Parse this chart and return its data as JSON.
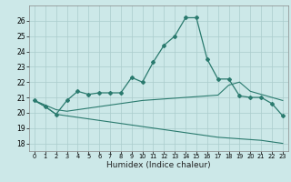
{
  "x": [
    0,
    1,
    2,
    3,
    4,
    5,
    6,
    7,
    8,
    9,
    10,
    11,
    12,
    13,
    14,
    15,
    16,
    17,
    18,
    19,
    20,
    21,
    22,
    23
  ],
  "humidex_main": [
    20.8,
    20.4,
    19.9,
    20.8,
    21.4,
    21.2,
    21.3,
    21.3,
    21.3,
    22.3,
    22.0,
    23.3,
    24.4,
    25.0,
    26.2,
    26.2,
    23.5,
    22.2,
    22.2,
    21.1,
    21.0,
    21.0,
    20.6,
    19.8
  ],
  "line_upper": [
    20.8,
    20.5,
    20.2,
    20.1,
    20.2,
    20.3,
    20.4,
    20.5,
    20.6,
    20.7,
    20.8,
    20.85,
    20.9,
    20.95,
    21.0,
    21.05,
    21.1,
    21.15,
    21.8,
    22.0,
    21.4,
    21.2,
    21.0,
    20.8
  ],
  "line_lower": [
    20.8,
    20.4,
    19.9,
    19.8,
    19.7,
    19.6,
    19.5,
    19.4,
    19.3,
    19.2,
    19.1,
    19.0,
    18.9,
    18.8,
    18.7,
    18.6,
    18.5,
    18.4,
    18.35,
    18.3,
    18.25,
    18.2,
    18.1,
    18.0
  ],
  "color": "#2a7a6e",
  "bg_color": "#cce8e8",
  "grid_color": "#aacccc",
  "xlabel": "Humidex (Indice chaleur)",
  "ylim": [
    17.5,
    27
  ],
  "yticks": [
    18,
    19,
    20,
    21,
    22,
    23,
    24,
    25,
    26
  ],
  "xlim": [
    -0.5,
    23.5
  ]
}
